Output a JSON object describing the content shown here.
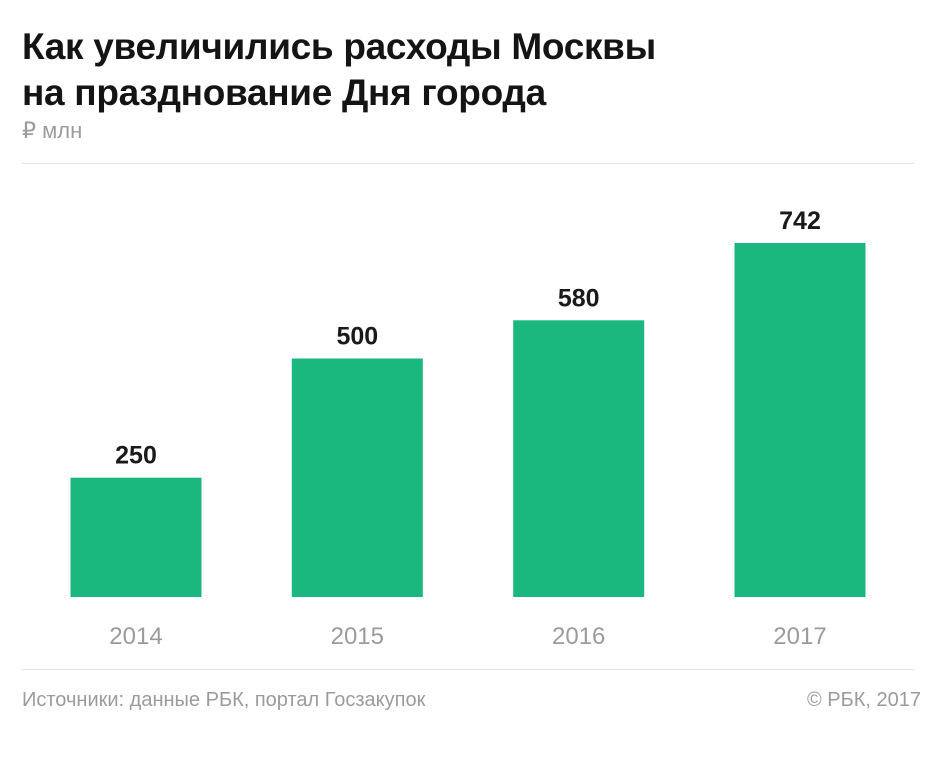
{
  "header": {
    "title_line1": "Как увеличились расходы Москвы",
    "title_line2": "на празднование Дня города",
    "unit": "₽ млн"
  },
  "chart_data": {
    "type": "bar",
    "title": "Как увеличились расходы Москвы на празднование Дня города",
    "ylabel": "₽ млн",
    "xlabel": "",
    "categories": [
      "2014",
      "2015",
      "2016",
      "2017"
    ],
    "values": [
      250,
      500,
      580,
      742
    ],
    "ylim": [
      0,
      742
    ],
    "grid": false,
    "bar_color": "#1ab87e"
  },
  "footer": {
    "source": "Источники: данные РБК, портал Госзакупок",
    "copyright": "© РБК, 2017"
  }
}
